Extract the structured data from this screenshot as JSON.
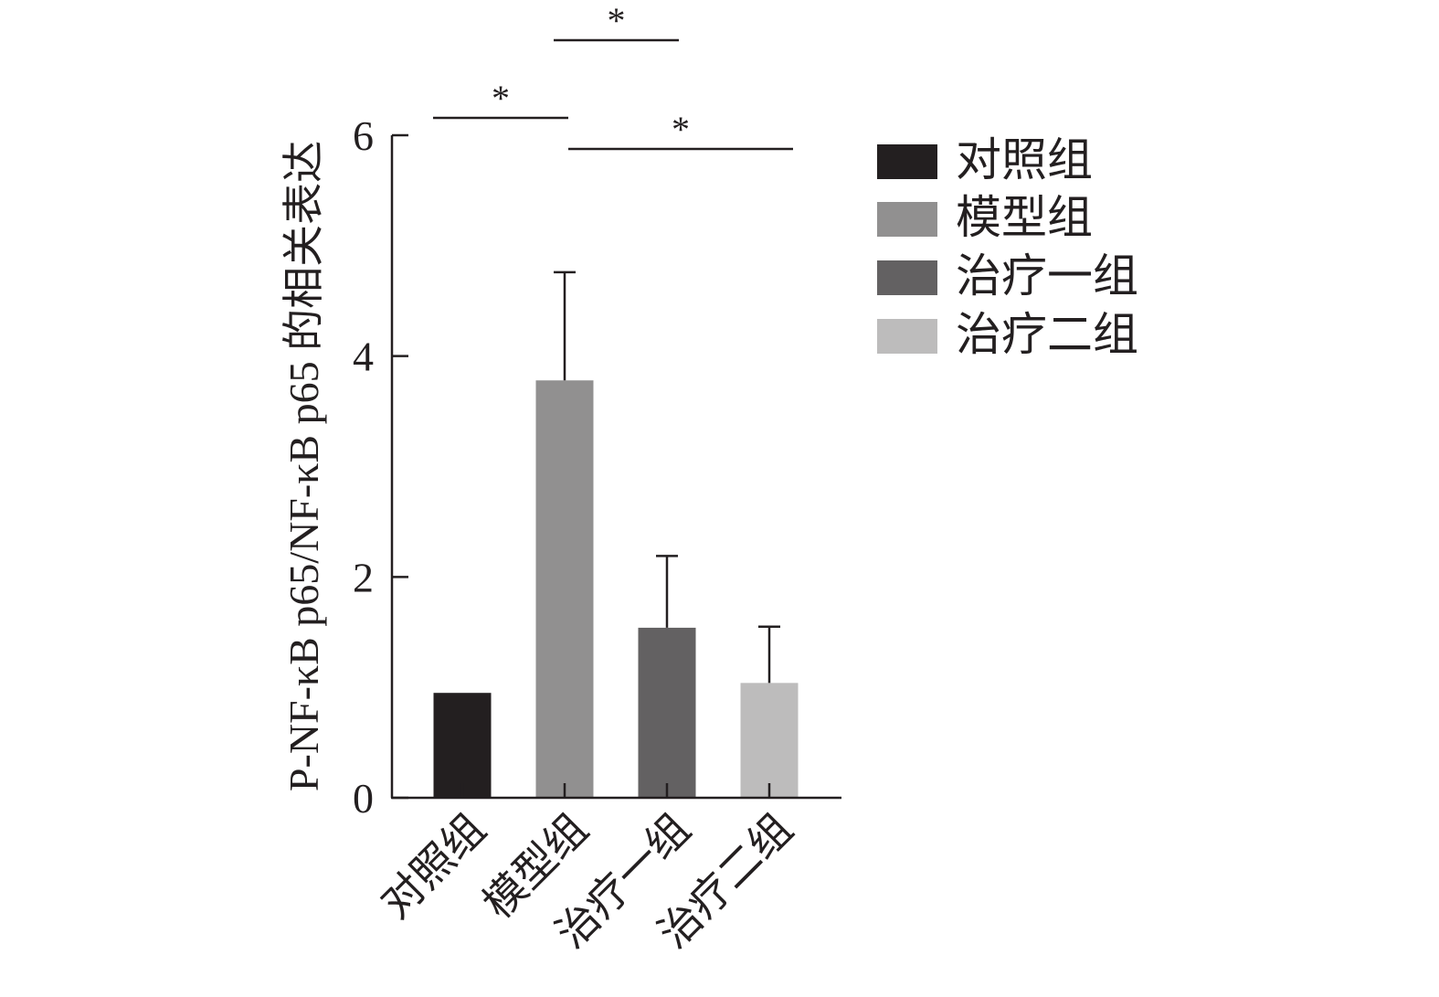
{
  "chart_data": {
    "type": "bar",
    "title": "",
    "xlabel": "",
    "ylabel": "P-NF-κB p65/NF-κB p65 的相关表达",
    "categories": [
      "对照组",
      "模型组",
      "治疗一组",
      "治疗二组"
    ],
    "values": [
      0.95,
      3.78,
      1.54,
      1.04
    ],
    "errors": [
      0,
      0.98,
      0.65,
      0.51
    ],
    "colors": [
      "#231f20",
      "#919090",
      "#636162",
      "#bdbcbc"
    ],
    "ylim": [
      0,
      6
    ],
    "yticks": [
      "0",
      "2",
      "4",
      "6"
    ],
    "grid": false,
    "legend": {
      "placement": "right",
      "entries": [
        "对照组",
        "模型组",
        "治疗一组",
        "治疗二组"
      ]
    },
    "significance": [
      {
        "from": "对照组",
        "to": "模型组",
        "label": "*"
      },
      {
        "from": "模型组",
        "to": "治疗一组",
        "label": "*"
      },
      {
        "from": "模型组",
        "to": "治疗二组",
        "label": "*"
      }
    ]
  }
}
